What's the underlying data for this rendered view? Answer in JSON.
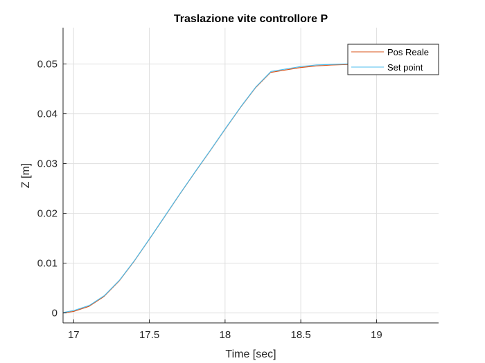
{
  "chart_data": {
    "type": "line",
    "title": "Traslazione vite controllore P",
    "xlabel": "Time [sec]",
    "ylabel": "Z [m]",
    "xlim": [
      16.93,
      19.41
    ],
    "ylim": [
      -0.002,
      0.0573
    ],
    "xticks": [
      17,
      17.5,
      18,
      18.5,
      19
    ],
    "xtick_labels": [
      "17",
      "17.5",
      "18",
      "18.5",
      "19"
    ],
    "yticks": [
      0,
      0.01,
      0.02,
      0.03,
      0.04,
      0.05
    ],
    "ytick_labels": [
      "0",
      "0.01",
      "0.02",
      "0.03",
      "0.04",
      "0.05"
    ],
    "grid": true,
    "legend_position": "top-right",
    "colors": {
      "pos_reale": "#D95319",
      "set_point": "#4DBEEE"
    },
    "series": [
      {
        "name": "Pos Reale",
        "x": [
          16.93,
          17.0,
          17.1,
          17.2,
          17.3,
          17.4,
          17.5,
          17.6,
          17.7,
          17.8,
          17.9,
          18.0,
          18.1,
          18.2,
          18.3,
          18.4,
          18.5,
          18.6,
          18.7,
          18.8,
          18.88
        ],
        "values": [
          0.0,
          0.0003,
          0.0013,
          0.0033,
          0.0064,
          0.0104,
          0.0148,
          0.0193,
          0.0238,
          0.0282,
          0.0325,
          0.0369,
          0.0412,
          0.0452,
          0.0483,
          0.0488,
          0.0493,
          0.0496,
          0.0498,
          0.0499,
          0.05
        ]
      },
      {
        "name": "Set point",
        "x": [
          16.93,
          17.0,
          17.1,
          17.2,
          17.3,
          17.4,
          17.5,
          17.6,
          17.7,
          17.8,
          17.9,
          18.0,
          18.1,
          18.2,
          18.3,
          18.4,
          18.5,
          18.6,
          18.7,
          18.8,
          18.88
        ],
        "values": [
          0.0,
          0.0004,
          0.0014,
          0.0034,
          0.0065,
          0.0105,
          0.0149,
          0.0194,
          0.0239,
          0.0283,
          0.0326,
          0.037,
          0.0413,
          0.0453,
          0.0484,
          0.0489,
          0.0494,
          0.0497,
          0.0498,
          0.0499,
          0.05
        ]
      }
    ]
  }
}
